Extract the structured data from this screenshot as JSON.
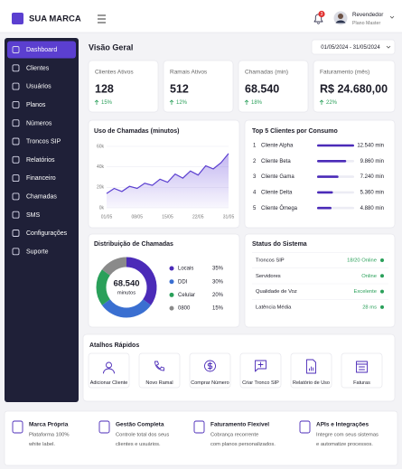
{
  "header": {
    "brand": "SUA MARCA",
    "notifications": "3",
    "user_role": "Revendedor",
    "user_plan": "Plano Master"
  },
  "sidebar": {
    "items": [
      "Dashboard",
      "Clientes",
      "Usuários",
      "Planos",
      "Números",
      "Troncos SIP",
      "Relatórios",
      "Financeiro",
      "Chamadas",
      "SMS",
      "Configurações",
      "Suporte"
    ]
  },
  "page_title": "Visão Geral",
  "date_range": "01/05/2024 - 31/05/2024",
  "stats": [
    {
      "label": "Clientes Ativos",
      "value": "128",
      "change": "15%"
    },
    {
      "label": "Ramais Ativos",
      "value": "512",
      "change": "12%"
    },
    {
      "label": "Chamadas (min)",
      "value": "68.540",
      "change": "18%"
    },
    {
      "label": "Faturamento (mês)",
      "value": "R$ 24.680,00",
      "change": "22%"
    }
  ],
  "usage_chart": {
    "type": "area",
    "title": "Uso de Chamadas (minutos)",
    "x": [
      "01/05",
      null,
      null,
      null,
      "08/05",
      null,
      null,
      null,
      "15/05",
      null,
      null,
      null,
      "22/05",
      null,
      null,
      null,
      "31/05"
    ],
    "values": [
      14000,
      19000,
      16000,
      21000,
      19000,
      24000,
      22000,
      28000,
      25000,
      33000,
      29000,
      36000,
      32000,
      41000,
      38000,
      44000,
      53000
    ],
    "color": "#5b3fd0",
    "ylim": [
      0,
      60000
    ],
    "yticks": [
      {
        "value": 0,
        "label": "0k"
      },
      {
        "value": 20000,
        "label": "20k"
      },
      {
        "value": 40000,
        "label": "40k"
      },
      {
        "value": 60000,
        "label": "60k"
      }
    ],
    "grid": true
  },
  "top_clients": {
    "title": "Top 5 Clientes por Consumo",
    "color": "#4b2bb8",
    "rows": [
      {
        "rank": 1,
        "name": "Cliente Alpha",
        "value": 12540,
        "value_label": "12.540 min"
      },
      {
        "rank": 2,
        "name": "Cliente Beta",
        "value": 9860,
        "value_label": "9.860 min"
      },
      {
        "rank": 3,
        "name": "Cliente Gama",
        "value": 7240,
        "value_label": "7.240 min"
      },
      {
        "rank": 4,
        "name": "Cliente Delta",
        "value": 5360,
        "value_label": "5.360 min"
      },
      {
        "rank": 5,
        "name": "Cliente Ômega",
        "value": 4880,
        "value_label": "4.880 min"
      }
    ]
  },
  "distribution": {
    "type": "donut",
    "title": "Distribuição de Chamadas",
    "total_label": "68.540",
    "total_unit": "minutos",
    "categories": [
      "Locais",
      "DDI",
      "Celular",
      "0800"
    ],
    "values": [
      35,
      30,
      20,
      15
    ],
    "value_labels": [
      "35%",
      "30%",
      "20%",
      "15%"
    ],
    "colors": [
      "#4b2bb8",
      "#3a6fd1",
      "#2aa05a",
      "#8a8a8a"
    ]
  },
  "status": {
    "title": "Status do Sistema",
    "rows": [
      {
        "label": "Troncos SIP",
        "status": "18/20 Online"
      },
      {
        "label": "Servidores",
        "status": "Online"
      },
      {
        "label": "Qualidade de Voz",
        "status": "Excelente"
      },
      {
        "label": "Latência Média",
        "status": "28 ms"
      }
    ]
  },
  "shortcuts": {
    "title": "Atalhos Rápidos",
    "items": [
      "Adicionar Cliente",
      "Novo Ramal",
      "Comprar Número",
      "Criar Tronco SIP",
      "Relatório de Uso",
      "Faturas"
    ]
  },
  "features": [
    {
      "title": "Marca Própria",
      "lines": [
        "Plataforma 100%",
        "white label."
      ]
    },
    {
      "title": "Gestão Completa",
      "lines": [
        "Controle total dos seus",
        "clientes e usuários."
      ]
    },
    {
      "title": "Faturamento Flexível",
      "lines": [
        "Cobrança recorrente",
        "com planos personalizados."
      ]
    },
    {
      "title": "APIs e Integrações",
      "lines": [
        "Integre com seus sistemas",
        "e automatize processos."
      ]
    }
  ]
}
